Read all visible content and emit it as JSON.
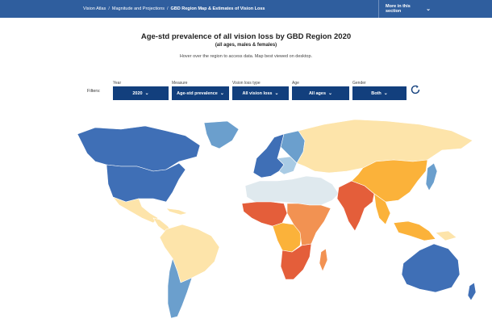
{
  "breadcrumb": {
    "items": [
      "Vision Atlas",
      "Magnitude and Projections",
      "GBD Region Map & Estimates of Vision Loss"
    ],
    "separator": "/"
  },
  "header": {
    "more_label": "More in this section",
    "more_icon": "chevron-down-icon"
  },
  "title": "Age-std prevalence of all vision loss by GBD Region 2020",
  "subtitle": "(all ages, males & females)",
  "hint": "Hover over the region to access data. Map best viewed on desktop.",
  "filters": {
    "label": "Filters:",
    "year": {
      "label": "Year",
      "value": "2020"
    },
    "measure": {
      "label": "Measure",
      "value": "Age-std prevalence"
    },
    "vision_loss_type": {
      "label": "Vision loss type",
      "value": "All vision loss"
    },
    "age": {
      "label": "Age",
      "value": "All ages"
    },
    "gender": {
      "label": "Gender",
      "value": "Both"
    },
    "reset_icon": "refresh-icon"
  },
  "map": {
    "colors": {
      "darkest_blue": "#3f6fb6",
      "mid_blue": "#6b9fcd",
      "light_blue": "#a9cbe4",
      "pale": "#dfe9ee",
      "cream": "#fde4aa",
      "amber": "#fbb23a",
      "orange": "#f29252",
      "red": "#e45e3a"
    }
  }
}
